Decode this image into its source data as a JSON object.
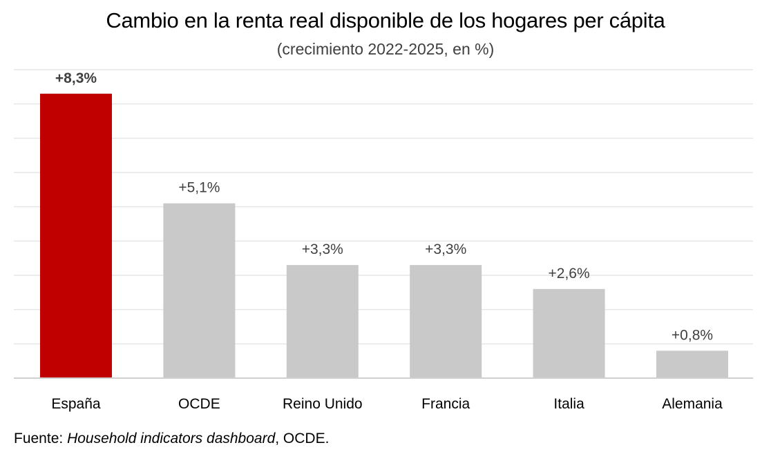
{
  "title": "Cambio en la renta real disponible de los hogares per cápita",
  "subtitle": "(crecimiento 2022-2025, en %)",
  "source": {
    "prefix": "Fuente: ",
    "publication": "Household indicators dashboard",
    "suffix": ", OCDE."
  },
  "colors": {
    "highlight": "#c00000",
    "bar": "#c9c9c9",
    "grid": "#e6e6e6",
    "axis": "#d0d0d0",
    "label": "#404040"
  },
  "chart_data": {
    "type": "bar",
    "title": "Cambio en la renta real disponible de los hogares per cápita",
    "subtitle": "(crecimiento 2022-2025, en %)",
    "categories": [
      "España",
      "OCDE",
      "Reino Unido",
      "Francia",
      "Italia",
      "Alemania"
    ],
    "values": [
      8.3,
      5.1,
      3.3,
      3.3,
      2.6,
      0.8
    ],
    "data_labels": [
      "+8,3%",
      "+5,1%",
      "+3,3%",
      "+3,3%",
      "+2,6%",
      "+0,8%"
    ],
    "highlighted": "España",
    "xlabel": "",
    "ylabel": "",
    "ylim": [
      0,
      9
    ],
    "grid": true,
    "legend": "none"
  }
}
